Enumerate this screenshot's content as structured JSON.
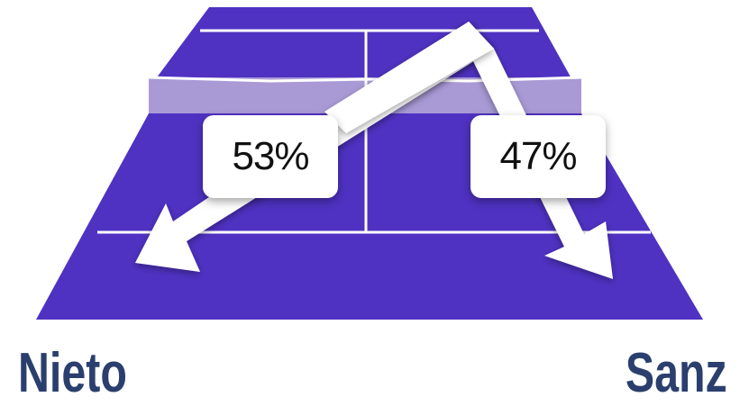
{
  "colors": {
    "court": "#4f32c2",
    "court_lines": "#ffffff",
    "net_band": "#a99ad6",
    "arrows": "#ffffff",
    "player_name": "#2b3f6e"
  },
  "shots": {
    "left_percent": "53%",
    "right_percent": "47%"
  },
  "players": {
    "left_name": "Nieto",
    "right_name": "Sanz"
  }
}
